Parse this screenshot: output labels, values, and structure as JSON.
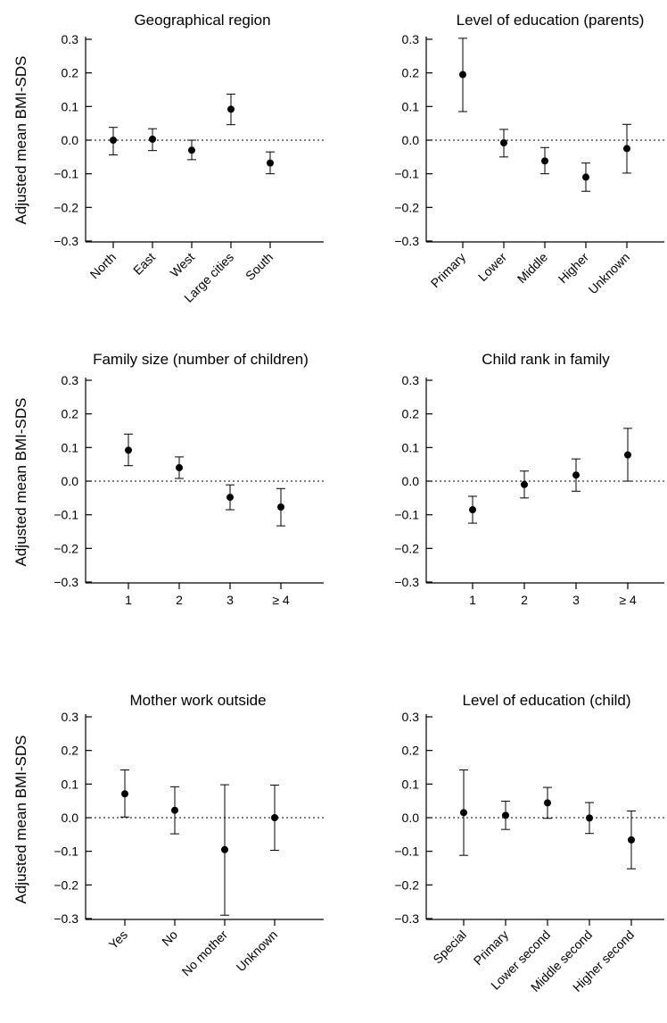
{
  "ylabel": "Adjusted mean BMI-SDS",
  "chart_data": [
    {
      "type": "scatter",
      "title": "Geographical region",
      "categories": [
        "North",
        "East",
        "West",
        "Large cities",
        "South"
      ],
      "values": [
        0.0,
        0.003,
        -0.03,
        0.092,
        -0.068
      ],
      "lower": [
        -0.044,
        -0.031,
        -0.058,
        0.046,
        -0.1
      ],
      "upper": [
        0.038,
        0.034,
        0.0,
        0.137,
        -0.035
      ],
      "ylim": [
        -0.3,
        0.3
      ],
      "yticks": [
        "0.3",
        "0.2",
        "0.1",
        "0.0",
        "−0.1",
        "−0.2",
        "−0.3"
      ],
      "xlabel_rotated": true
    },
    {
      "type": "scatter",
      "title": "Level of education (parents)",
      "categories": [
        "Primary",
        "Lower",
        "Middle",
        "Higher",
        "Unknown"
      ],
      "values": [
        0.195,
        -0.008,
        -0.062,
        -0.11,
        -0.025
      ],
      "lower": [
        0.085,
        -0.05,
        -0.1,
        -0.152,
        -0.098
      ],
      "upper": [
        0.303,
        0.032,
        -0.022,
        -0.068,
        0.047
      ],
      "ylim": [
        -0.3,
        0.3
      ],
      "yticks": [
        "0.3",
        "0.2",
        "0.1",
        "0.0",
        "−0.1",
        "−0.2",
        "−0.3"
      ],
      "xlabel_rotated": true
    },
    {
      "type": "scatter",
      "title": "Family size (number of children)",
      "categories": [
        "1",
        "2",
        "3",
        "≥ 4"
      ],
      "values": [
        0.092,
        0.04,
        -0.048,
        -0.077
      ],
      "lower": [
        0.046,
        0.008,
        -0.085,
        -0.133
      ],
      "upper": [
        0.14,
        0.072,
        -0.011,
        -0.022
      ],
      "ylim": [
        -0.3,
        0.3
      ],
      "yticks": [
        "0.3",
        "0.2",
        "0.1",
        "0.0",
        "−0.1",
        "−0.2",
        "−0.3"
      ],
      "xlabel_rotated": false
    },
    {
      "type": "scatter",
      "title": "Child rank in family",
      "categories": [
        "1",
        "2",
        "3",
        "≥ 4"
      ],
      "values": [
        -0.085,
        -0.01,
        0.018,
        0.078
      ],
      "lower": [
        -0.125,
        -0.05,
        -0.03,
        0.0
      ],
      "upper": [
        -0.045,
        0.03,
        0.066,
        0.157
      ],
      "ylim": [
        -0.3,
        0.3
      ],
      "yticks": [
        "0.3",
        "0.2",
        "0.1",
        "0.0",
        "−0.1",
        "−0.2",
        "−0.3"
      ],
      "xlabel_rotated": false
    },
    {
      "type": "scatter",
      "title": "Mother work outside",
      "categories": [
        "Yes",
        "No",
        "No mother",
        "Unknown"
      ],
      "values": [
        0.071,
        0.022,
        -0.095,
        0.0
      ],
      "lower": [
        0.002,
        -0.048,
        -0.29,
        -0.097
      ],
      "upper": [
        0.142,
        0.092,
        0.098,
        0.097
      ],
      "ylim": [
        -0.3,
        0.3
      ],
      "yticks": [
        "0.3",
        "0.2",
        "0.1",
        "0.0",
        "−0.1",
        "−0.2",
        "−0.3"
      ],
      "xlabel_rotated": true
    },
    {
      "type": "scatter",
      "title": "Level of education (child)",
      "categories": [
        "Special",
        "Primary",
        "Lower second",
        "Middle second",
        "Higher second"
      ],
      "values": [
        0.015,
        0.007,
        0.044,
        -0.001,
        -0.066
      ],
      "lower": [
        -0.112,
        -0.035,
        -0.002,
        -0.047,
        -0.152
      ],
      "upper": [
        0.142,
        0.049,
        0.09,
        0.045,
        0.02
      ],
      "ylim": [
        -0.3,
        0.3
      ],
      "yticks": [
        "0.3",
        "0.2",
        "0.1",
        "0.0",
        "−0.1",
        "−0.2",
        "−0.3"
      ],
      "xlabel_rotated": true
    }
  ]
}
